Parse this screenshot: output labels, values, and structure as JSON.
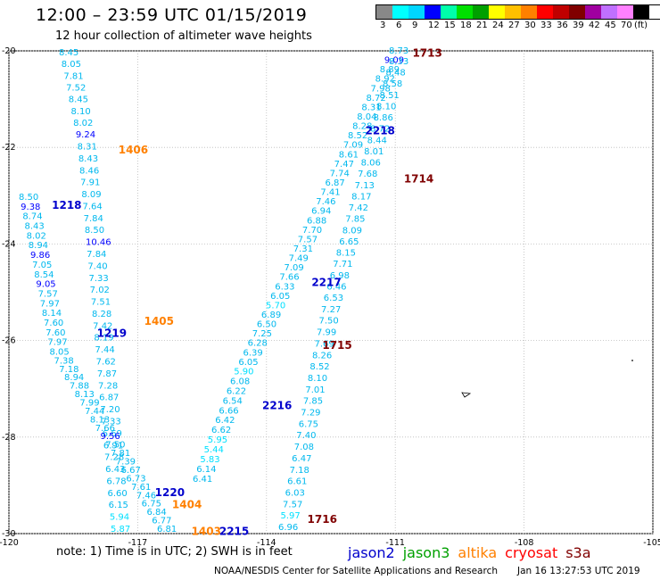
{
  "header": {
    "title": "12:00 – 23:59 UTC 01/15/2019",
    "subtitle": "12 hour collection of altimeter wave heights"
  },
  "legend": {
    "colors": [
      "#888888",
      "#00ffff",
      "#00d6ff",
      "#0000ff",
      "#00ffaa",
      "#00e000",
      "#00a000",
      "#ffff00",
      "#ffc000",
      "#ff8000",
      "#ff0000",
      "#c00000",
      "#800000",
      "#a000a0",
      "#c070ff",
      "#ff80ff",
      "#000000"
    ],
    "labels": [
      "3",
      "6",
      "9",
      "12",
      "15",
      "18",
      "21",
      "24",
      "27",
      "30",
      "33",
      "36",
      "39",
      "42",
      "45",
      "70",
      "(ft)"
    ]
  },
  "map": {
    "lon_range": [
      -120,
      -105
    ],
    "lat_range": [
      -30,
      -20
    ],
    "lon_ticks": [
      "-120",
      "-117",
      "-114",
      "-111",
      "-108",
      "-105"
    ],
    "lat_ticks": [
      "-20",
      "-22",
      "-24",
      "-26",
      "-28",
      "-30"
    ]
  },
  "tracks": [
    {
      "name": "track-1218",
      "values": [
        "8.45",
        "8.05",
        "7.81",
        "7.52",
        "8.45",
        "8.10",
        "8.02",
        "9.24",
        "8.31",
        "8.43",
        "8.46",
        "7.91",
        "8.09",
        "7.64",
        "7.84",
        "8.50",
        "10.46",
        "7.84",
        "7.40",
        "7.33",
        "7.02",
        "7.51",
        "8.28",
        "7.42",
        "8.19",
        "7.44",
        "7.62",
        "7.87",
        "7.28",
        "6.87",
        "7.20",
        "7.33",
        "6.69",
        "6.91",
        "7.28",
        "6.43",
        "6.78",
        "6.60",
        "6.15",
        "5.94",
        "5.87"
      ]
    },
    {
      "name": "track-1219",
      "values": [
        "8.50",
        "9.38",
        "8.74",
        "8.43",
        "8.02",
        "8.94",
        "9.86",
        "7.05",
        "8.54",
        "9.05",
        "7.57",
        "7.97",
        "8.14",
        "7.60",
        "7.60",
        "7.97",
        "8.05",
        "7.38",
        "7.18",
        "8.94",
        "7.88",
        "8.13",
        "7.99",
        "7.44",
        "8.13",
        "7.66",
        "9.56",
        "7.50",
        "7.81",
        "7.39",
        "6.67",
        "6.73",
        "7.61",
        "7.46",
        "6.75",
        "6.84",
        "6.77",
        "6.81"
      ]
    },
    {
      "name": "track-2215",
      "values": [
        "6.41",
        "6.14",
        "5.83",
        "5.44",
        "5.95",
        "6.62",
        "6.42",
        "6.66",
        "6.54",
        "6.22",
        "6.08",
        "5.90",
        "6.05",
        "6.39",
        "6.28",
        "7.25",
        "6.50",
        "6.89",
        "5.70",
        "6.05",
        "6.33",
        "7.66",
        "7.09",
        "7.49",
        "7.31",
        "7.57",
        "7.70",
        "6.88",
        "6.94",
        "7.46",
        "7.41",
        "6.87",
        "7.74",
        "7.47",
        "8.61",
        "7.09",
        "8.52",
        "8.28",
        "8.04",
        "8.31",
        "8.72",
        "7.98",
        "8.92",
        "8.89",
        "9.09",
        "8.73"
      ]
    },
    {
      "name": "track-2216",
      "values": [
        "6.96",
        "5.97",
        "7.57",
        "6.03",
        "6.61",
        "7.18",
        "6.47",
        "7.08",
        "7.40",
        "6.75",
        "7.29",
        "7.85",
        "7.01",
        "8.10",
        "8.52",
        "8.26",
        "7.69",
        "7.99",
        "7.50",
        "7.27",
        "6.53",
        "6.46",
        "6.98",
        "7.71",
        "8.15",
        "6.65",
        "8.09",
        "7.85",
        "7.42",
        "8.17",
        "7.13",
        "7.68",
        "8.06",
        "8.01",
        "8.44",
        "8.72",
        "8.86",
        "8.10",
        "8.51",
        "8.58",
        "8.48",
        "8.33"
      ]
    }
  ],
  "passes": [
    {
      "label": "1713",
      "color": "#800000",
      "lon": -110.6,
      "lat": -20.05
    },
    {
      "label": "1406",
      "color": "#ff8000",
      "lon": -117.45,
      "lat": -22.05
    },
    {
      "label": "2218",
      "color": "#0000cc",
      "lon": -111.7,
      "lat": -21.65
    },
    {
      "label": "1714",
      "color": "#800000",
      "lon": -110.8,
      "lat": -22.65
    },
    {
      "label": "1218",
      "color": "#0000cc",
      "lon": -119.0,
      "lat": -23.2
    },
    {
      "label": "2217",
      "color": "#0000cc",
      "lon": -112.95,
      "lat": -24.8
    },
    {
      "label": "1405",
      "color": "#ff8000",
      "lon": -116.85,
      "lat": -25.6
    },
    {
      "label": "1219",
      "color": "#0000cc",
      "lon": -117.95,
      "lat": -25.85
    },
    {
      "label": "1715",
      "color": "#800000",
      "lon": -112.7,
      "lat": -26.1
    },
    {
      "label": "2216",
      "color": "#0000cc",
      "lon": -114.1,
      "lat": -27.35
    },
    {
      "label": "1220",
      "color": "#0000cc",
      "lon": -116.6,
      "lat": -29.15
    },
    {
      "label": "1404",
      "color": "#ff8000",
      "lon": -116.2,
      "lat": -29.4
    },
    {
      "label": "1716",
      "color": "#800000",
      "lon": -113.05,
      "lat": -29.7
    },
    {
      "label": "1403",
      "color": "#ff8000",
      "lon": -115.75,
      "lat": -29.95
    },
    {
      "label": "2215",
      "color": "#0000cc",
      "lon": -115.1,
      "lat": -29.95
    }
  ],
  "footer": {
    "note": "note:  1) Time is in UTC;  2) SWH is in feet",
    "credit": "NOAA/NESDIS Center for Satellite Applications and Research",
    "timestamp": "Jan 16 13:27:53 UTC 2019",
    "satellites": [
      {
        "name": "jason2",
        "color": "#0000cc"
      },
      {
        "name": "jason3",
        "color": "#00a000"
      },
      {
        "name": "altika",
        "color": "#ff8000"
      },
      {
        "name": "cryosat",
        "color": "#ff0000"
      },
      {
        "name": "s3a",
        "color": "#800000"
      }
    ]
  }
}
